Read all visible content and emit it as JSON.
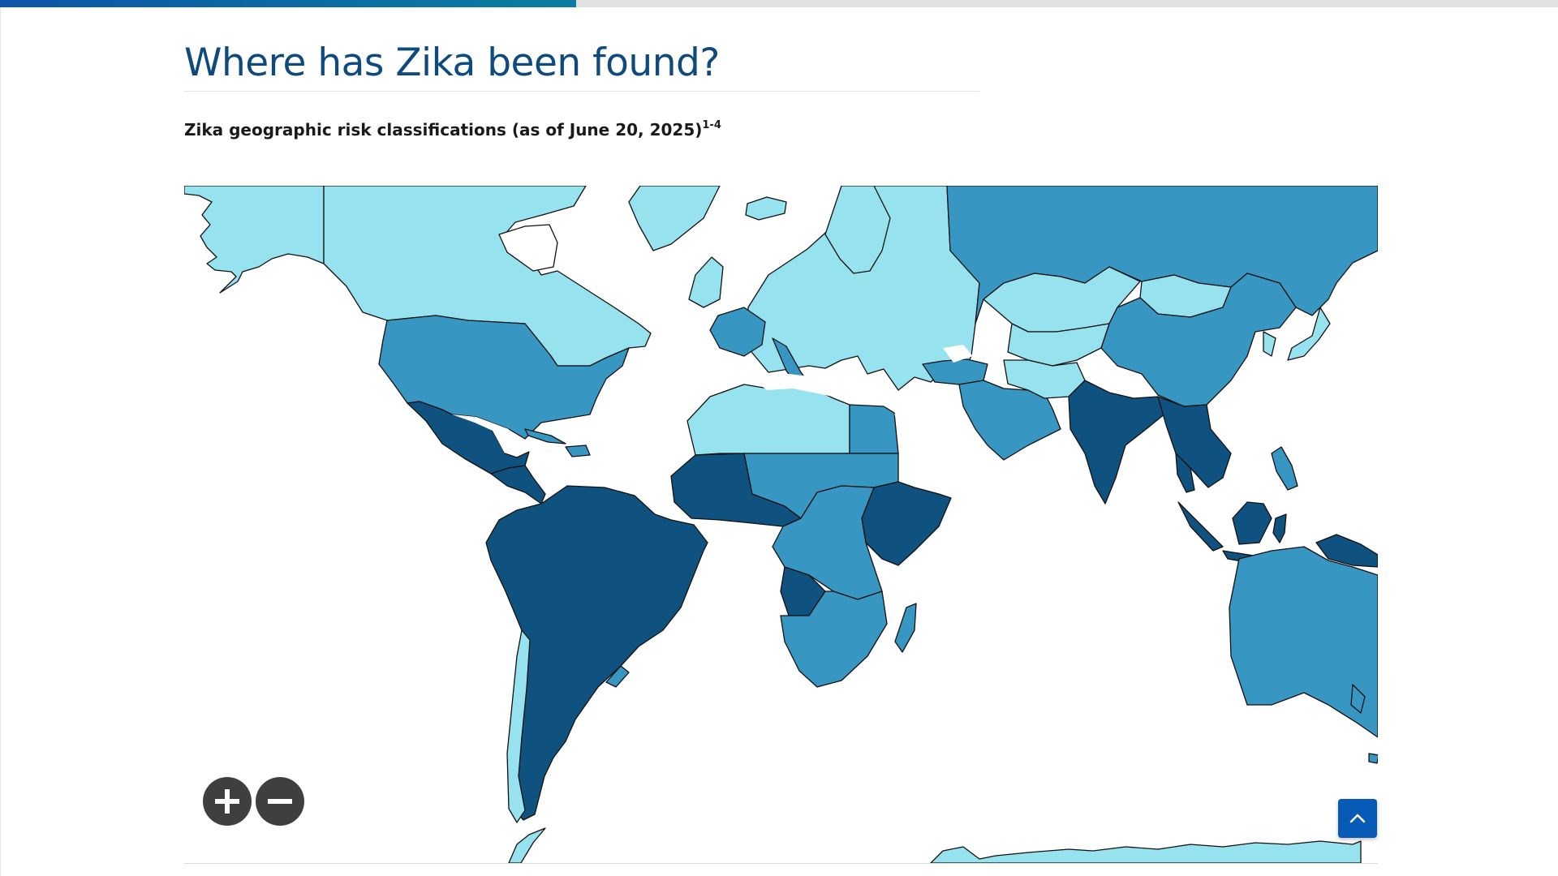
{
  "page": {
    "title": "Where has Zika been found?",
    "subtitle": "Zika geographic risk classifications (as of June 20, 2025)",
    "subtitle_superscript": "1-4",
    "reading_progress_percent": 37
  },
  "map": {
    "region": "World",
    "colors": {
      "ocean": "#ffffff",
      "lightest": "#96e2ee",
      "medium": "#3896c2",
      "darkest": "#0f527f",
      "border": "#111111"
    },
    "regions": [
      {
        "name": "Canada",
        "shade": "lightest"
      },
      {
        "name": "Alaska",
        "shade": "lightest"
      },
      {
        "name": "Greenland",
        "shade": "lightest"
      },
      {
        "name": "United States",
        "shade": "medium"
      },
      {
        "name": "Mexico",
        "shade": "darkest"
      },
      {
        "name": "Central America",
        "shade": "darkest"
      },
      {
        "name": "South America",
        "shade": "darkest"
      },
      {
        "name": "Chile",
        "shade": "lightest"
      },
      {
        "name": "Uruguay",
        "shade": "medium"
      },
      {
        "name": "Europe",
        "shade": "lightest"
      },
      {
        "name": "France",
        "shade": "medium"
      },
      {
        "name": "Italy",
        "shade": "medium"
      },
      {
        "name": "Russia",
        "shade": "medium"
      },
      {
        "name": "Kazakhstan",
        "shade": "lightest"
      },
      {
        "name": "Mongolia",
        "shade": "lightest"
      },
      {
        "name": "China",
        "shade": "medium"
      },
      {
        "name": "Japan",
        "shade": "lightest"
      },
      {
        "name": "Middle East",
        "shade": "medium"
      },
      {
        "name": "India",
        "shade": "darkest"
      },
      {
        "name": "Southeast Asia",
        "shade": "darkest"
      },
      {
        "name": "Indonesia",
        "shade": "darkest"
      },
      {
        "name": "Papua New Guinea",
        "shade": "darkest"
      },
      {
        "name": "Australia",
        "shade": "medium"
      },
      {
        "name": "North Africa",
        "shade": "lightest"
      },
      {
        "name": "Egypt",
        "shade": "medium"
      },
      {
        "name": "West Africa",
        "shade": "darkest"
      },
      {
        "name": "Central Africa",
        "shade": "medium"
      },
      {
        "name": "Angola",
        "shade": "darkest"
      },
      {
        "name": "East Africa",
        "shade": "darkest"
      },
      {
        "name": "Southern Africa",
        "shade": "medium"
      },
      {
        "name": "Madagascar",
        "shade": "medium"
      },
      {
        "name": "Antarctica",
        "shade": "lightest"
      }
    ]
  },
  "controls": {
    "zoom_in_icon": "plus-icon",
    "zoom_out_icon": "minus-icon",
    "back_to_top_icon": "chevron-up-icon"
  }
}
